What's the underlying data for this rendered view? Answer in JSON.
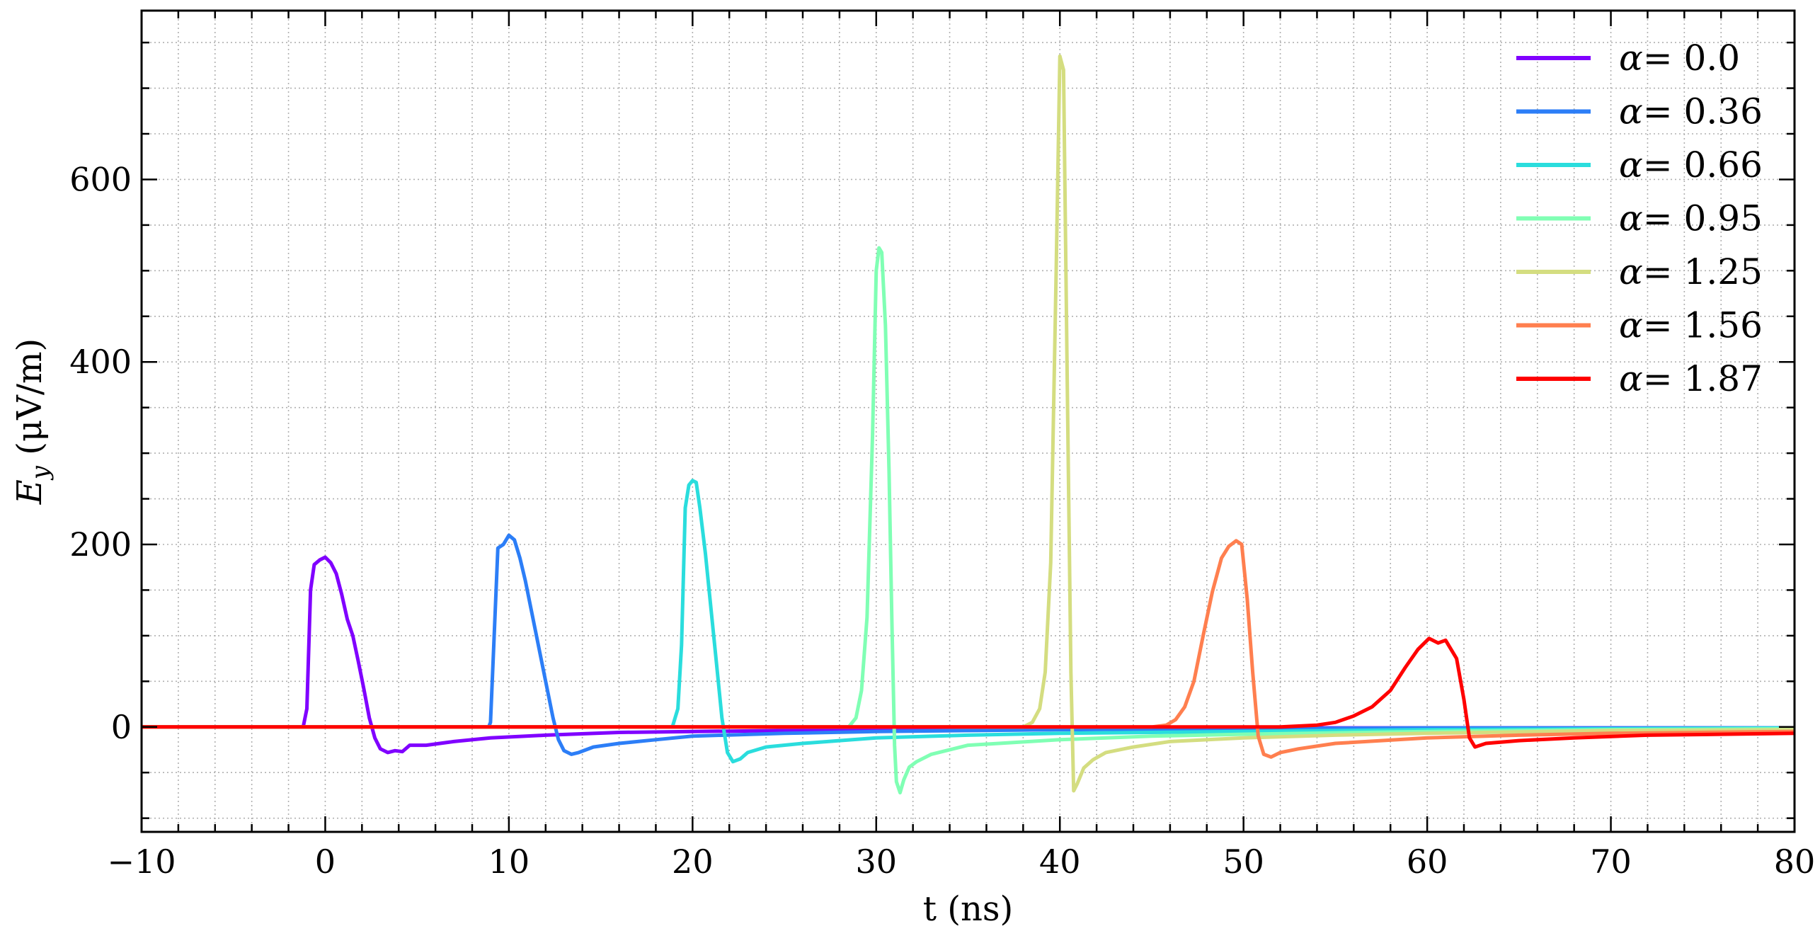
{
  "chart_data": {
    "type": "line",
    "xlabel": "t (ns)",
    "ylabel_main": "E",
    "ylabel_sub": "y",
    "ylabel_rest": " (μV/m)",
    "xlim": [
      -10,
      80
    ],
    "ylim": [
      -115,
      785
    ],
    "x_ticks": [
      -10,
      0,
      10,
      20,
      30,
      40,
      50,
      60,
      70,
      80
    ],
    "x_tick_labels": [
      "−10",
      "0",
      "10",
      "20",
      "30",
      "40",
      "50",
      "60",
      "70",
      "80"
    ],
    "y_ticks": [
      0,
      200,
      400,
      600
    ],
    "y_tick_labels": [
      "0",
      "200",
      "400",
      "600"
    ],
    "grid": true,
    "legend_position": "top-right",
    "legend_symbol": "α",
    "series": [
      {
        "name": "= 0.0",
        "color": "#8000ff",
        "points": [
          [
            -10,
            0
          ],
          [
            -1.2,
            0
          ],
          [
            -1.0,
            20
          ],
          [
            -0.8,
            150
          ],
          [
            -0.6,
            178
          ],
          [
            -0.3,
            183
          ],
          [
            0,
            186
          ],
          [
            0.3,
            180
          ],
          [
            0.6,
            168
          ],
          [
            0.9,
            145
          ],
          [
            1.2,
            118
          ],
          [
            1.5,
            100
          ],
          [
            1.8,
            72
          ],
          [
            2.1,
            42
          ],
          [
            2.4,
            10
          ],
          [
            2.7,
            -12
          ],
          [
            3.0,
            -24
          ],
          [
            3.4,
            -28
          ],
          [
            3.8,
            -26
          ],
          [
            4.2,
            -27
          ],
          [
            4.6,
            -20
          ],
          [
            5.5,
            -20
          ],
          [
            7,
            -16
          ],
          [
            9,
            -12
          ],
          [
            12,
            -9
          ],
          [
            16,
            -6
          ],
          [
            20,
            -5
          ],
          [
            30,
            -3
          ],
          [
            40,
            -2
          ],
          [
            50,
            -1
          ],
          [
            60,
            -1
          ],
          [
            80,
            -1
          ]
        ]
      },
      {
        "name": "= 0.36",
        "color": "#2c7ef7",
        "points": [
          [
            -10,
            0
          ],
          [
            8.9,
            0
          ],
          [
            9.0,
            5
          ],
          [
            9.2,
            100
          ],
          [
            9.4,
            196
          ],
          [
            9.7,
            200
          ],
          [
            10.0,
            210
          ],
          [
            10.3,
            205
          ],
          [
            10.6,
            185
          ],
          [
            10.9,
            160
          ],
          [
            11.2,
            130
          ],
          [
            11.5,
            100
          ],
          [
            11.8,
            70
          ],
          [
            12.1,
            40
          ],
          [
            12.4,
            10
          ],
          [
            12.7,
            -14
          ],
          [
            13.0,
            -26
          ],
          [
            13.4,
            -30
          ],
          [
            13.8,
            -28
          ],
          [
            14.2,
            -25
          ],
          [
            14.6,
            -22
          ],
          [
            16,
            -18
          ],
          [
            18,
            -14
          ],
          [
            20,
            -10
          ],
          [
            25,
            -7
          ],
          [
            30,
            -5
          ],
          [
            40,
            -3
          ],
          [
            50,
            -2
          ],
          [
            60,
            -1
          ],
          [
            80,
            -1
          ]
        ]
      },
      {
        "name": "= 0.66",
        "color": "#2adddd",
        "points": [
          [
            -10,
            0
          ],
          [
            18.9,
            0
          ],
          [
            19.2,
            20
          ],
          [
            19.4,
            90
          ],
          [
            19.6,
            240
          ],
          [
            19.8,
            265
          ],
          [
            20.0,
            270
          ],
          [
            20.2,
            268
          ],
          [
            20.4,
            240
          ],
          [
            20.7,
            190
          ],
          [
            21.0,
            130
          ],
          [
            21.3,
            70
          ],
          [
            21.6,
            10
          ],
          [
            21.9,
            -28
          ],
          [
            22.2,
            -38
          ],
          [
            22.6,
            -35
          ],
          [
            23,
            -28
          ],
          [
            24,
            -22
          ],
          [
            26,
            -18
          ],
          [
            28,
            -15
          ],
          [
            30,
            -12
          ],
          [
            35,
            -9
          ],
          [
            40,
            -7
          ],
          [
            50,
            -5
          ],
          [
            60,
            -3
          ],
          [
            70,
            -2
          ],
          [
            80,
            -1
          ]
        ]
      },
      {
        "name": "= 0.95",
        "color": "#80ffb4",
        "points": [
          [
            -10,
            0
          ],
          [
            28.5,
            0
          ],
          [
            28.9,
            10
          ],
          [
            29.2,
            40
          ],
          [
            29.5,
            120
          ],
          [
            29.8,
            320
          ],
          [
            30.0,
            500
          ],
          [
            30.15,
            525
          ],
          [
            30.3,
            520
          ],
          [
            30.5,
            440
          ],
          [
            30.7,
            280
          ],
          [
            30.85,
            120
          ],
          [
            31.0,
            -20
          ],
          [
            31.1,
            -60
          ],
          [
            31.3,
            -72
          ],
          [
            31.5,
            -58
          ],
          [
            31.8,
            -44
          ],
          [
            32.2,
            -38
          ],
          [
            33,
            -30
          ],
          [
            35,
            -20
          ],
          [
            40,
            -14
          ],
          [
            45,
            -10
          ],
          [
            50,
            -8
          ],
          [
            60,
            -5
          ],
          [
            70,
            -3
          ],
          [
            80,
            -2
          ]
        ]
      },
      {
        "name": "= 1.25",
        "color": "#d4dd80",
        "points": [
          [
            -10,
            0
          ],
          [
            38.0,
            0
          ],
          [
            38.5,
            5
          ],
          [
            38.9,
            20
          ],
          [
            39.2,
            60
          ],
          [
            39.5,
            180
          ],
          [
            39.8,
            500
          ],
          [
            40.0,
            735
          ],
          [
            40.2,
            720
          ],
          [
            40.4,
            380
          ],
          [
            40.6,
            60
          ],
          [
            40.75,
            -70
          ],
          [
            40.95,
            -62
          ],
          [
            41.3,
            -45
          ],
          [
            41.8,
            -36
          ],
          [
            42.5,
            -28
          ],
          [
            44,
            -22
          ],
          [
            46,
            -16
          ],
          [
            50,
            -12
          ],
          [
            55,
            -9
          ],
          [
            60,
            -7
          ],
          [
            70,
            -4
          ],
          [
            80,
            -3
          ]
        ]
      },
      {
        "name": "= 1.56",
        "color": "#ff7f4f",
        "points": [
          [
            -10,
            0
          ],
          [
            45.0,
            0
          ],
          [
            45.8,
            2
          ],
          [
            46.3,
            8
          ],
          [
            46.8,
            22
          ],
          [
            47.3,
            50
          ],
          [
            47.8,
            100
          ],
          [
            48.3,
            148
          ],
          [
            48.8,
            185
          ],
          [
            49.2,
            198
          ],
          [
            49.6,
            204
          ],
          [
            49.9,
            200
          ],
          [
            50.2,
            140
          ],
          [
            50.5,
            60
          ],
          [
            50.8,
            -10
          ],
          [
            51.1,
            -30
          ],
          [
            51.5,
            -33
          ],
          [
            52,
            -28
          ],
          [
            53,
            -24
          ],
          [
            55,
            -18
          ],
          [
            60,
            -12
          ],
          [
            65,
            -9
          ],
          [
            70,
            -7
          ],
          [
            80,
            -5
          ]
        ]
      },
      {
        "name": "= 1.87",
        "color": "#ff0000",
        "points": [
          [
            -10,
            0
          ],
          [
            52.0,
            0
          ],
          [
            54.0,
            2
          ],
          [
            55.0,
            5
          ],
          [
            56.0,
            12
          ],
          [
            57.0,
            22
          ],
          [
            58.0,
            40
          ],
          [
            58.8,
            65
          ],
          [
            59.5,
            85
          ],
          [
            60.1,
            97
          ],
          [
            60.6,
            92
          ],
          [
            61.0,
            95
          ],
          [
            61.6,
            75
          ],
          [
            62.0,
            30
          ],
          [
            62.3,
            -12
          ],
          [
            62.6,
            -22
          ],
          [
            63.2,
            -18
          ],
          [
            65,
            -15
          ],
          [
            68,
            -12
          ],
          [
            72,
            -9
          ],
          [
            76,
            -8
          ],
          [
            80,
            -7
          ]
        ]
      }
    ]
  }
}
